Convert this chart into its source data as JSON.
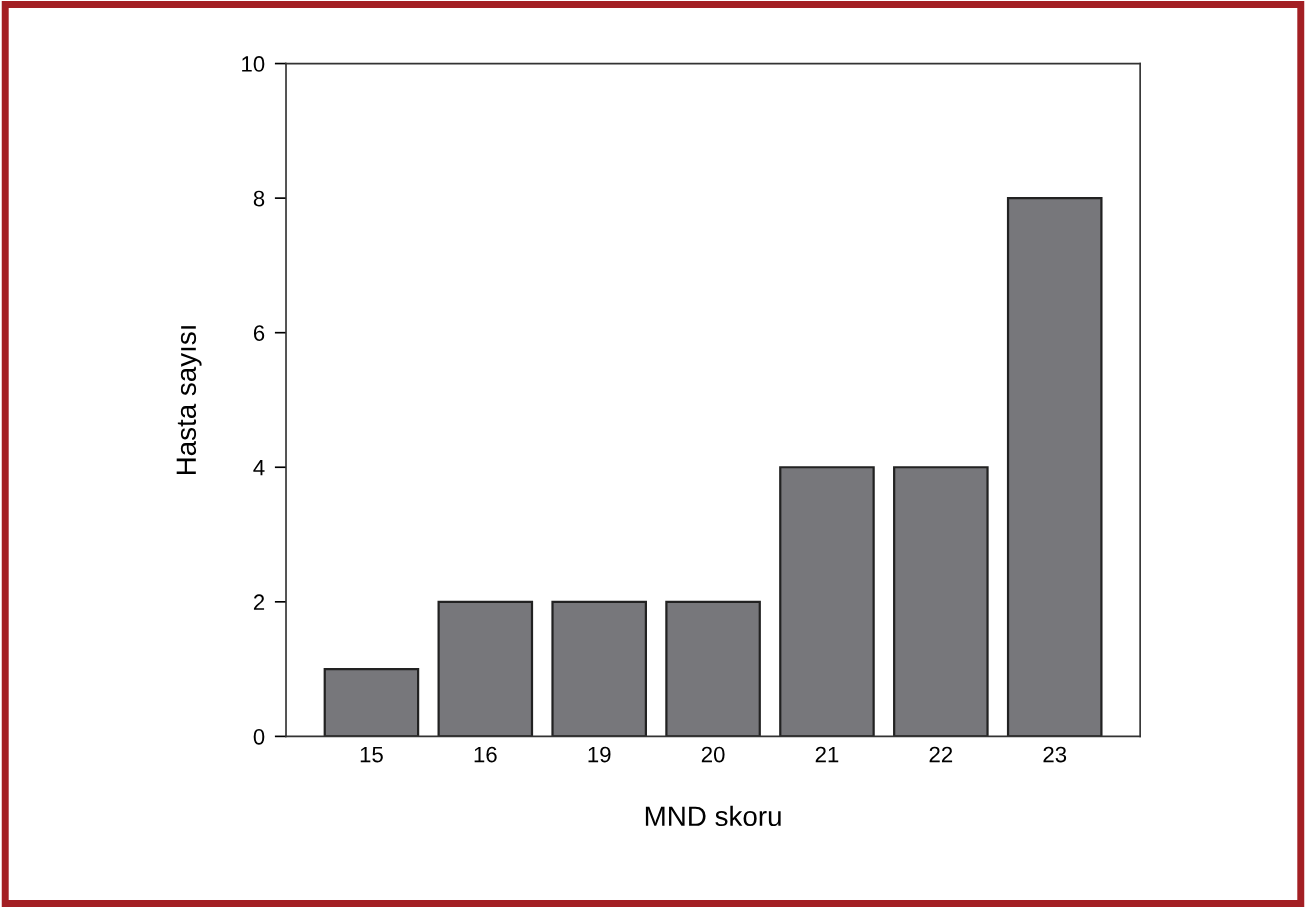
{
  "chart_data": {
    "type": "bar",
    "xlabel": "MND skoru",
    "ylabel": "Hasta sayısı",
    "categories": [
      "15",
      "16",
      "19",
      "20",
      "21",
      "22",
      "23"
    ],
    "values": [
      1,
      2,
      2,
      2,
      4,
      4,
      8
    ],
    "color": "#77777b",
    "ylim": [
      0,
      10
    ],
    "yticks": [
      0,
      2,
      4,
      6,
      8,
      10
    ],
    "grid": false,
    "legend": false
  }
}
